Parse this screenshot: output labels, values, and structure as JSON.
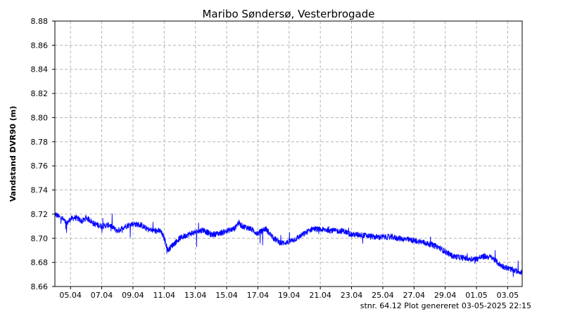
{
  "chart_data": {
    "type": "line",
    "title": "Maribo Søndersø, Vesterbrogade",
    "ylabel": "Vandstand DVR90 (m)",
    "xlabel": "",
    "ylim": [
      8.66,
      8.88
    ],
    "yticks": [
      "8.66",
      "8.68",
      "8.70",
      "8.72",
      "8.74",
      "8.76",
      "8.78",
      "8.80",
      "8.82",
      "8.84",
      "8.86",
      "8.88"
    ],
    "xlim": [
      "2025-04-04T00:00",
      "2025-05-03T22:15"
    ],
    "xticks": [
      {
        "date": "2025-04-05",
        "label": "05.04"
      },
      {
        "date": "2025-04-07",
        "label": "07.04"
      },
      {
        "date": "2025-04-09",
        "label": "09.04"
      },
      {
        "date": "2025-04-11",
        "label": "11.04"
      },
      {
        "date": "2025-04-13",
        "label": "13.04"
      },
      {
        "date": "2025-04-15",
        "label": "15.04"
      },
      {
        "date": "2025-04-17",
        "label": "17.04"
      },
      {
        "date": "2025-04-19",
        "label": "19.04"
      },
      {
        "date": "2025-04-21",
        "label": "21.04"
      },
      {
        "date": "2025-04-23",
        "label": "23.04"
      },
      {
        "date": "2025-04-25",
        "label": "25.04"
      },
      {
        "date": "2025-04-27",
        "label": "27.04"
      },
      {
        "date": "2025-04-29",
        "label": "29.04"
      },
      {
        "date": "2025-05-01",
        "label": "01.05"
      },
      {
        "date": "2025-05-03",
        "label": "03.05"
      }
    ],
    "grid": true,
    "line_color": "#0000ff",
    "series": [
      {
        "x": [
          "2025-04-04T00:00",
          "2025-04-04T06:00",
          "2025-04-04T12:00",
          "2025-04-04T18:00",
          "2025-04-05T00:00",
          "2025-04-05T06:00",
          "2025-04-05T12:00",
          "2025-04-05T18:00",
          "2025-04-06T00:00",
          "2025-04-06T06:00",
          "2025-04-06T12:00",
          "2025-04-06T18:00",
          "2025-04-07T00:00",
          "2025-04-07T12:00",
          "2025-04-08T00:00",
          "2025-04-08T12:00",
          "2025-04-09T00:00",
          "2025-04-09T12:00",
          "2025-04-10T00:00",
          "2025-04-10T12:00",
          "2025-04-10T18:00",
          "2025-04-11T00:00",
          "2025-04-11T06:00",
          "2025-04-11T12:00",
          "2025-04-12T00:00",
          "2025-04-12T12:00",
          "2025-04-13T00:00",
          "2025-04-13T12:00",
          "2025-04-14T00:00",
          "2025-04-14T12:00",
          "2025-04-15T00:00",
          "2025-04-15T12:00",
          "2025-04-15T18:00",
          "2025-04-16T00:00",
          "2025-04-16T12:00",
          "2025-04-17T00:00",
          "2025-04-17T12:00",
          "2025-04-18T00:00",
          "2025-04-18T12:00",
          "2025-04-19T00:00",
          "2025-04-19T12:00",
          "2025-04-20T00:00",
          "2025-04-20T12:00",
          "2025-04-21T00:00",
          "2025-04-21T12:00",
          "2025-04-22T00:00",
          "2025-04-22T12:00",
          "2025-04-23T00:00",
          "2025-04-23T12:00",
          "2025-04-24T00:00",
          "2025-04-24T12:00",
          "2025-04-25T00:00",
          "2025-04-25T12:00",
          "2025-04-26T00:00",
          "2025-04-26T12:00",
          "2025-04-27T00:00",
          "2025-04-27T12:00",
          "2025-04-28T00:00",
          "2025-04-28T12:00",
          "2025-04-29T00:00",
          "2025-04-29T12:00",
          "2025-04-30T00:00",
          "2025-04-30T12:00",
          "2025-05-01T00:00",
          "2025-05-01T12:00",
          "2025-05-02T00:00",
          "2025-05-02T12:00",
          "2025-05-03T00:00",
          "2025-05-03T12:00",
          "2025-05-03T22:15"
        ],
        "values": [
          8.72,
          8.718,
          8.716,
          8.712,
          8.716,
          8.717,
          8.716,
          8.714,
          8.717,
          8.715,
          8.712,
          8.711,
          8.71,
          8.711,
          8.706,
          8.71,
          8.712,
          8.711,
          8.707,
          8.706,
          8.706,
          8.7,
          8.69,
          8.694,
          8.7,
          8.703,
          8.705,
          8.707,
          8.703,
          8.704,
          8.706,
          8.708,
          8.713,
          8.71,
          8.708,
          8.704,
          8.708,
          8.7,
          8.696,
          8.697,
          8.7,
          8.704,
          8.708,
          8.707,
          8.707,
          8.706,
          8.706,
          8.703,
          8.703,
          8.702,
          8.701,
          8.701,
          8.701,
          8.7,
          8.699,
          8.698,
          8.697,
          8.695,
          8.693,
          8.689,
          8.685,
          8.684,
          8.683,
          8.683,
          8.685,
          8.684,
          8.678,
          8.675,
          8.673,
          8.672
        ]
      }
    ],
    "footer": "stnr. 64.12   Plot genereret 03-05-2025 22:15"
  }
}
